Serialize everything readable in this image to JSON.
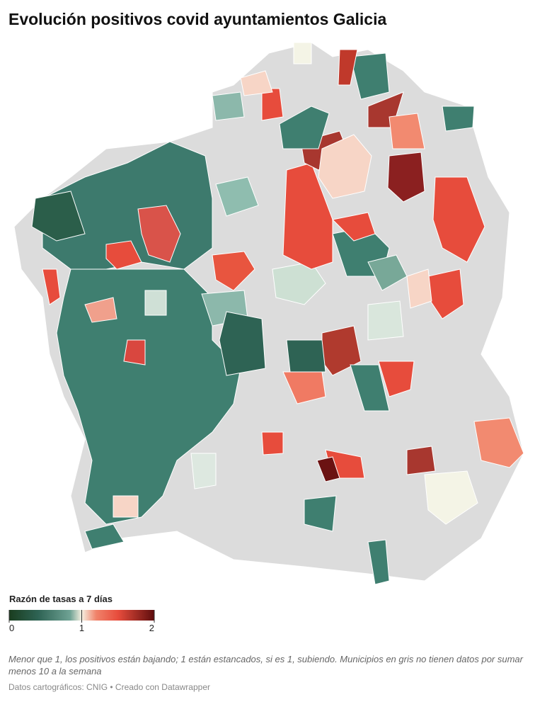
{
  "header": {
    "title": "Evolución positivos covid ayuntamientos Galicia"
  },
  "legend": {
    "title": "Razón de tasas a 7 días",
    "ticks": [
      0,
      1,
      2
    ]
  },
  "footer": {
    "note": "Menor que 1, los positivos están bajando; 1 están estancados, si es 1, subiendo. Municipios en gris no tienen datos por sumar menos 10 a la semana",
    "credits": "Datos cartográficos: CNIG • Creado con Datawrapper"
  }
}
